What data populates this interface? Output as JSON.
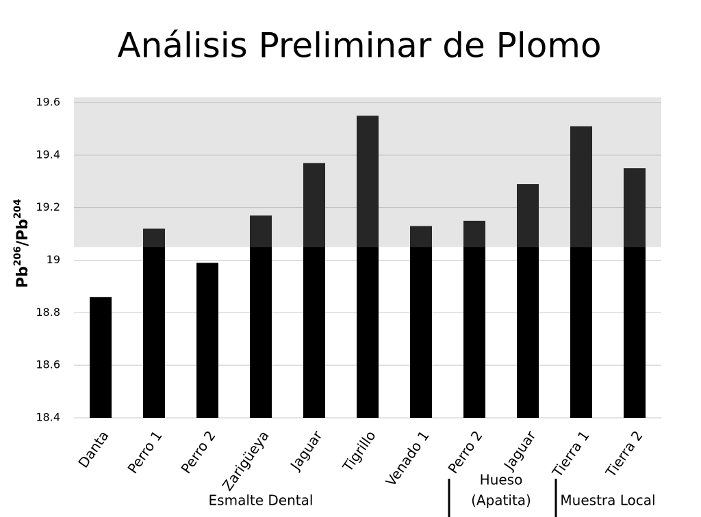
{
  "chart_data": {
    "type": "bar",
    "title": "Análisis Preliminar de Plomo",
    "y_label": [
      "Pb",
      "206",
      "/Pb",
      "204"
    ],
    "categories": [
      "Danta",
      "Perro 1",
      "Perro 2",
      "Zarigüeya",
      "Jaguar",
      "Tigrillo",
      "Venado 1",
      "Perro 2",
      "Jaguar",
      "Tierra 1",
      "Tierra 2"
    ],
    "values": [
      18.86,
      19.12,
      18.99,
      19.17,
      19.37,
      19.55,
      19.13,
      19.15,
      19.29,
      19.51,
      19.35
    ],
    "color": "#000000",
    "groups": [
      {
        "label": [
          "Esmalte Dental"
        ],
        "count": 7
      },
      {
        "label": [
          "Hueso",
          "(Apatita)"
        ],
        "count": 2
      },
      {
        "label": [
          "Muestra Local"
        ],
        "count": 2
      }
    ],
    "highlight_band": [
      19.05,
      19.62
    ],
    "ylim": [
      18.4,
      19.6
    ],
    "yticks": [
      18.4,
      18.6,
      18.8,
      19,
      19.2,
      19.4,
      19.6
    ],
    "grid": true
  }
}
